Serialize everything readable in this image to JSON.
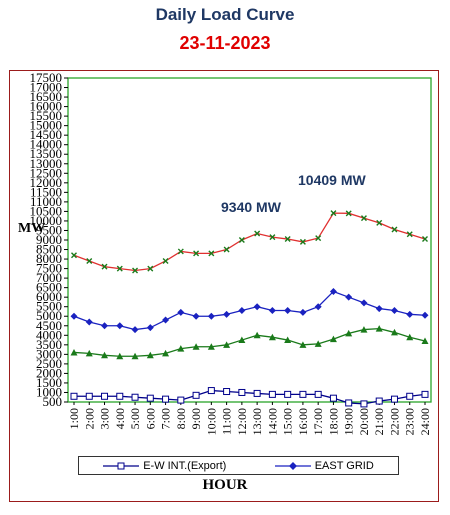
{
  "title": "Daily Load Curve",
  "subtitle": "23-11-2023",
  "annotations": {
    "peak_evening": "10409 MW",
    "peak_day": "9340 MW"
  },
  "legend": {
    "series1_label": "E-W INT.(Export)",
    "series2_label": "EAST GRID"
  },
  "colors": {
    "plot_border": "#2aa52a",
    "frame_border": "#9b1b1b",
    "title": "#1f3864",
    "subtitle": "#e00000",
    "ew_int": "#00008b",
    "east_grid": "#1a22c0",
    "load_upper": "#e03030",
    "load_lower": "#1a7a1a"
  },
  "chart_data": {
    "type": "line",
    "title": "Daily Load Curve",
    "subtitle": "23-11-2023",
    "xlabel": "HOUR",
    "ylabel": "MW",
    "ylim": [
      500,
      17500
    ],
    "yticks": [
      500,
      1000,
      1500,
      2000,
      2500,
      3000,
      3500,
      4000,
      4500,
      5000,
      5500,
      6000,
      6500,
      7000,
      7500,
      8000,
      8500,
      9000,
      9500,
      10000,
      10500,
      11000,
      11500,
      12000,
      12500,
      13000,
      13500,
      14000,
      14500,
      15000,
      15500,
      16000,
      16500,
      17000,
      17500
    ],
    "categories": [
      "1:00",
      "2:00",
      "3:00",
      "4:00",
      "5:00",
      "6:00",
      "7:00",
      "8:00",
      "9:00",
      "10:00",
      "11:00",
      "12:00",
      "13:00",
      "14:00",
      "15:00",
      "16:00",
      "17:00",
      "18:00",
      "19:00",
      "20:00",
      "21:00",
      "22:00",
      "23:00",
      "24:00"
    ],
    "grid": false,
    "legend_position": "bottom",
    "series": [
      {
        "name": "E-W INT.(Export)",
        "marker": "square",
        "values": [
          800,
          800,
          800,
          800,
          750,
          700,
          650,
          600,
          850,
          1100,
          1050,
          1000,
          950,
          900,
          900,
          900,
          900,
          700,
          450,
          400,
          550,
          650,
          800,
          900
        ]
      },
      {
        "name": "EAST GRID",
        "marker": "diamond",
        "values": [
          5000,
          4700,
          4500,
          4500,
          4300,
          4400,
          4800,
          5200,
          5000,
          5000,
          5100,
          5300,
          5500,
          5300,
          5300,
          5200,
          5500,
          6300,
          6000,
          5700,
          5400,
          5300,
          5100,
          5050
        ]
      },
      {
        "marker": "x",
        "values": [
          8200,
          7900,
          7600,
          7500,
          7400,
          7500,
          7900,
          8400,
          8300,
          8300,
          8500,
          9000,
          9340,
          9150,
          9050,
          8900,
          9100,
          10409,
          10400,
          10150,
          9900,
          9550,
          9300,
          9050
        ]
      },
      {
        "marker": "triangle",
        "values": [
          3100,
          3050,
          2950,
          2900,
          2900,
          2950,
          3050,
          3300,
          3400,
          3400,
          3500,
          3750,
          4000,
          3900,
          3750,
          3500,
          3550,
          3800,
          4100,
          4300,
          4350,
          4150,
          3900,
          3700
        ]
      }
    ]
  }
}
